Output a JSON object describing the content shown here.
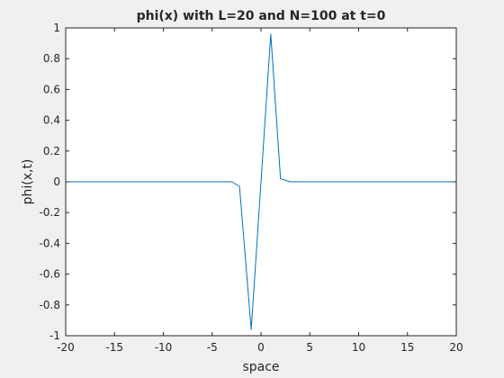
{
  "chart_data": {
    "type": "line",
    "title": "phi(x) with L=20 and N=100 at t=0",
    "xlabel": "space",
    "ylabel": "phi(x,t)",
    "xlim": [
      -20,
      20
    ],
    "ylim": [
      -1,
      1
    ],
    "xticks": [
      -20,
      -15,
      -10,
      -5,
      0,
      5,
      10,
      15,
      20
    ],
    "yticks": [
      -1,
      -0.8,
      -0.6,
      -0.4,
      -0.2,
      0,
      0.2,
      0.4,
      0.6,
      0.8,
      1
    ],
    "xtick_labels": [
      "-20",
      "-15",
      "-10",
      "-5",
      "0",
      "5",
      "10",
      "15",
      "20"
    ],
    "ytick_labels": [
      "-1",
      "-0.8",
      "-0.6",
      "-0.4",
      "-0.2",
      "0",
      "0.2",
      "0.4",
      "0.6",
      "0.8",
      "1"
    ],
    "grid": false,
    "box": true,
    "series": [
      {
        "color": "#0072bd",
        "x": [
          -20,
          -4,
          -3,
          -2.2,
          -1,
          1,
          2,
          3,
          20
        ],
        "y": [
          0,
          0,
          0,
          -0.03,
          -0.96,
          0.96,
          0.02,
          0,
          0
        ]
      }
    ]
  },
  "colors": {
    "figure_background": "#f0f0f0",
    "axes_background": "#ffffff",
    "axis_color": "#262626"
  }
}
